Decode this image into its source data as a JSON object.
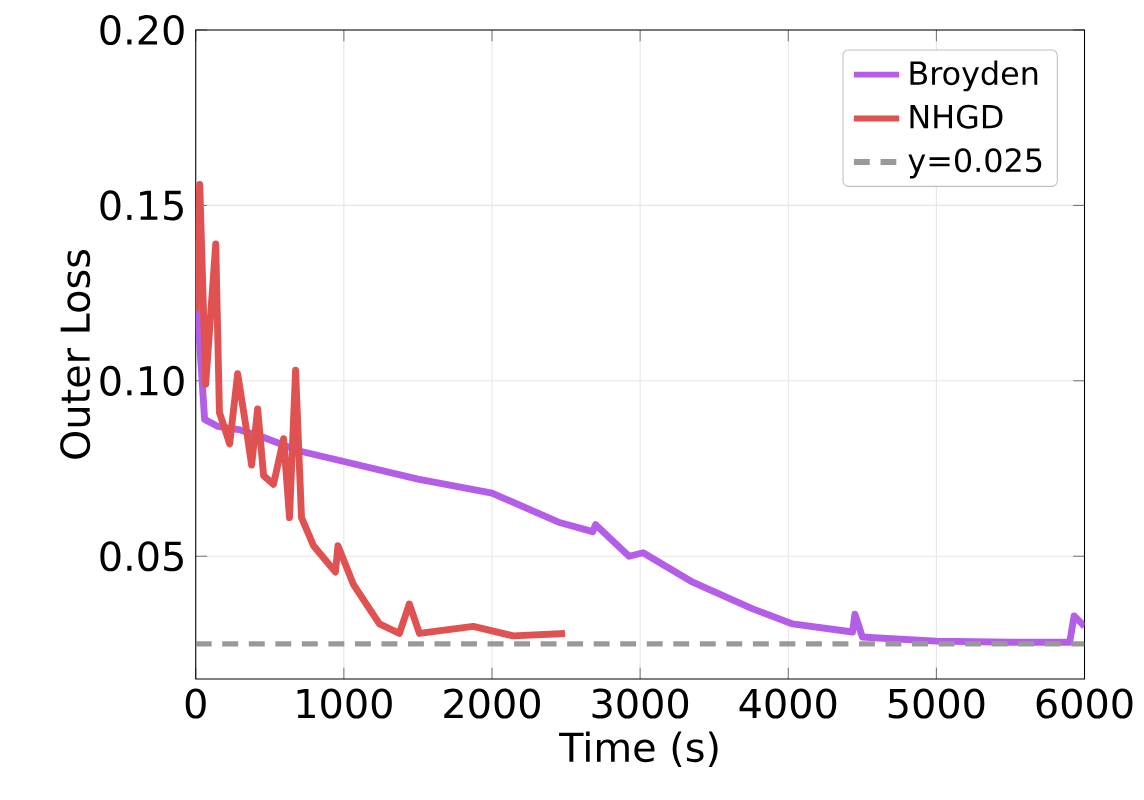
{
  "chart_data": {
    "type": "line",
    "xlabel": "Time (s)",
    "ylabel": "Outer Loss",
    "xlim": [
      0,
      6000
    ],
    "ylim": [
      0.015,
      0.2
    ],
    "xticks": [
      0,
      1000,
      2000,
      3000,
      4000,
      5000,
      6000
    ],
    "yticks": [
      0.05,
      {
        "value": 0.1,
        "label": "0.10"
      },
      0.15,
      {
        "value": 0.2,
        "label": "0.20"
      }
    ],
    "grid": true,
    "legend": "top right",
    "line_style": "solid",
    "marker": "none",
    "series": [
      {
        "name": "Broyden",
        "color": "#b45ee8",
        "x": [
          0,
          20,
          60,
          150,
          300,
          450,
          700,
          1000,
          1500,
          2000,
          2450,
          2680,
          2700,
          2925,
          3020,
          3355,
          3760,
          4030,
          4434,
          4450,
          4500,
          4610,
          5000,
          5500,
          5900,
          5930,
          6000
        ],
        "values": [
          0.14,
          0.115,
          0.089,
          0.087,
          0.086,
          0.084,
          0.08,
          0.077,
          0.072,
          0.068,
          0.0597,
          0.057,
          0.059,
          0.05,
          0.051,
          0.0426,
          0.035,
          0.0307,
          0.0284,
          0.0335,
          0.027,
          0.0267,
          0.0258,
          0.0255,
          0.0255,
          0.033,
          0.03
        ]
      },
      {
        "name": "NHGD",
        "color": "#e05252",
        "x": [
          0,
          27,
          67,
          135,
          160,
          229,
          283,
          337,
          377,
          418,
          458,
          525,
          593,
          633,
          674,
          714,
          795,
          943,
          960,
          1064,
          1240,
          1375,
          1442,
          1510,
          1873,
          2143,
          2493
        ],
        "values": [
          0.12,
          0.156,
          0.099,
          0.139,
          0.091,
          0.082,
          0.102,
          0.0875,
          0.076,
          0.092,
          0.073,
          0.0705,
          0.0835,
          0.061,
          0.103,
          0.061,
          0.053,
          0.0455,
          0.053,
          0.042,
          0.0307,
          0.028,
          0.0364,
          0.028,
          0.03,
          0.0273,
          0.028
        ]
      }
    ],
    "ref_lines": [
      {
        "axis": "y",
        "value": 0.025,
        "label": "y=0.025",
        "color": "#999999",
        "line_style": "dashed"
      }
    ]
  }
}
